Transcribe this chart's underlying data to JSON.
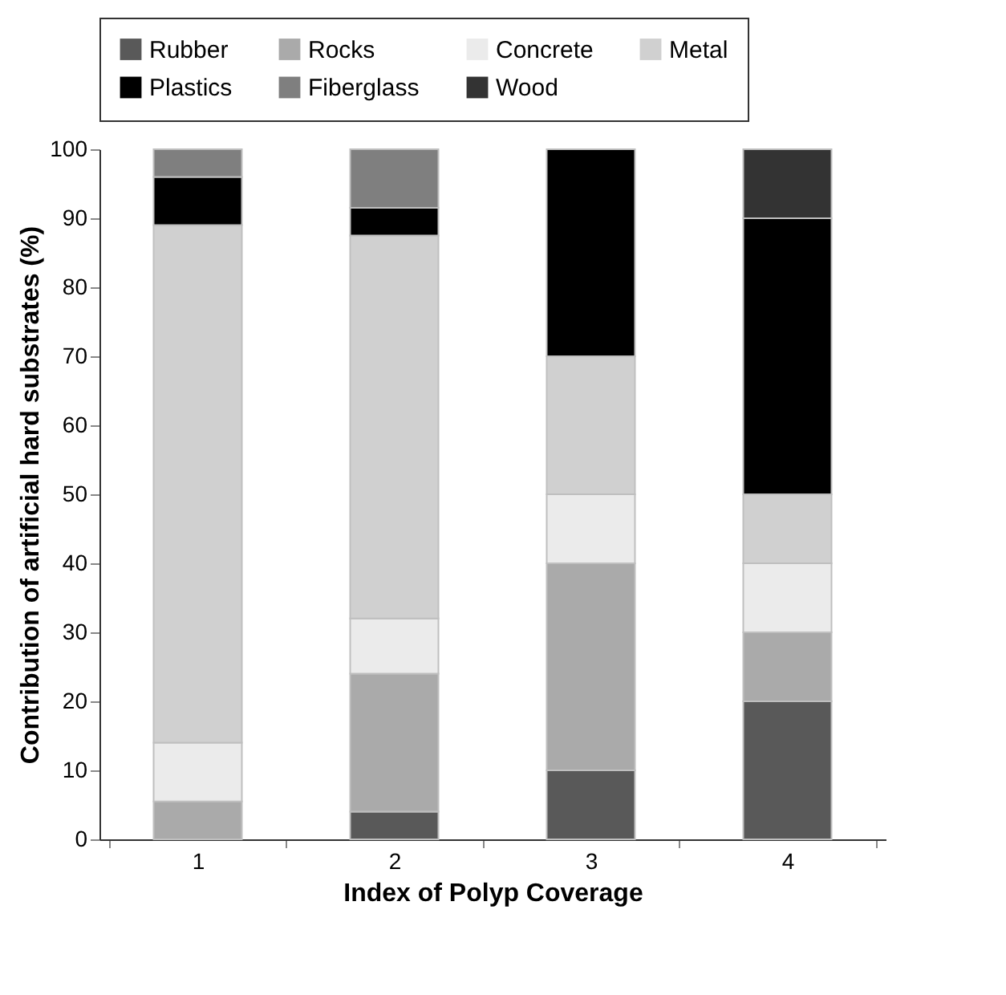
{
  "chart_data": {
    "type": "bar",
    "stacked": true,
    "xlabel": "Index of Polyp Coverage",
    "ylabel": "Contribution of artificial hard substrates (%)",
    "categories": [
      "1",
      "2",
      "3",
      "4"
    ],
    "series": [
      {
        "name": "Rubber",
        "color": "#595959",
        "values": [
          0,
          4,
          10,
          20
        ]
      },
      {
        "name": "Rocks",
        "color": "#aaaaaa",
        "values": [
          5.5,
          20,
          30,
          10
        ]
      },
      {
        "name": "Concrete",
        "color": "#ebebeb",
        "values": [
          8.5,
          8,
          10,
          10
        ]
      },
      {
        "name": "Metal",
        "color": "#d0d0d0",
        "values": [
          75,
          55.5,
          20,
          10
        ]
      },
      {
        "name": "Plastics",
        "color": "#000000",
        "values": [
          7,
          4,
          30,
          40
        ]
      },
      {
        "name": "Fiberglass",
        "color": "#7f7f7f",
        "values": [
          4,
          8.5,
          0,
          0
        ]
      },
      {
        "name": "Wood",
        "color": "#333333",
        "values": [
          0,
          0,
          0,
          10
        ]
      }
    ],
    "ylim": [
      0,
      100
    ],
    "yticks": [
      0,
      10,
      20,
      30,
      40,
      50,
      60,
      70,
      80,
      90,
      100
    ],
    "grid": false,
    "legend": "top"
  }
}
